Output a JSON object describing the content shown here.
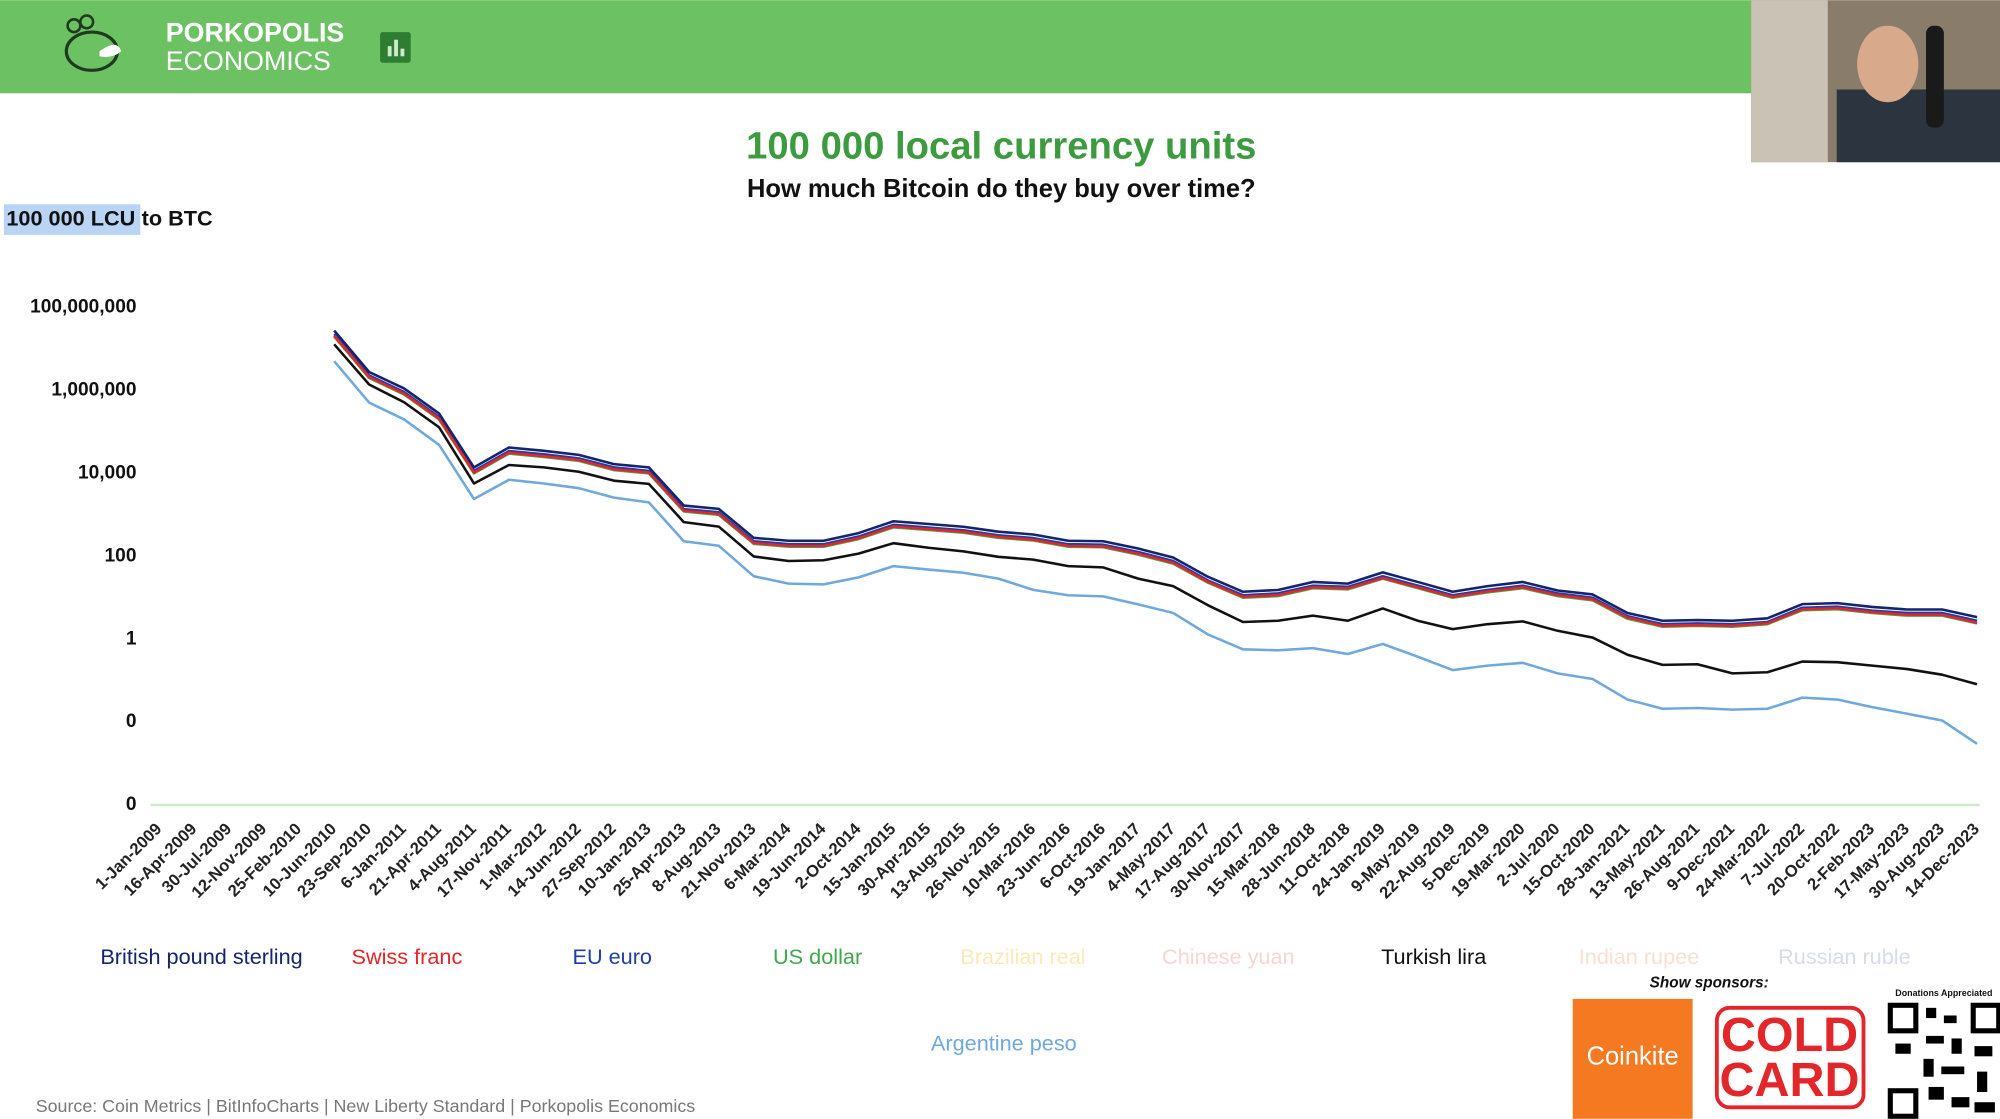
{
  "header": {
    "brand_top": "PORKOPOLIS",
    "brand_bottom": "ECONOMICS"
  },
  "sponsors": {
    "heading": "Show sponsors:",
    "coinkite": "Coinkite",
    "coldcard_top": "COLD",
    "coldcard_bottom": "CARD",
    "qr_caption": "Donations Appreciated"
  },
  "chart_data": {
    "type": "line",
    "title": "100 000 local currency units",
    "subtitle": "How much Bitcoin do they buy over time?",
    "y_label_highlight": "100 000 LCU",
    "y_label_rest": "to BTC",
    "source": "Source: Coin Metrics | BitInfoCharts | New Liberty Standard | Porkopolis Economics",
    "log_scale": true,
    "grid": false,
    "ylim": [
      0.0001,
      100000000
    ],
    "yticks": [
      {
        "value": 100000000,
        "label": "100,000,000"
      },
      {
        "value": 1000000,
        "label": "1,000,000"
      },
      {
        "value": 10000,
        "label": "10,000"
      },
      100,
      1,
      {
        "value": 0.01,
        "label": "0"
      },
      {
        "value": 0.0001,
        "label": "0"
      }
    ],
    "categories": [
      "1-Jan-2009",
      "16-Apr-2009",
      "30-Jul-2009",
      "12-Nov-2009",
      "25-Feb-2010",
      "10-Jun-2010",
      "23-Sep-2010",
      "6-Jan-2011",
      "21-Apr-2011",
      "4-Aug-2011",
      "17-Nov-2011",
      "1-Mar-2012",
      "14-Jun-2012",
      "27-Sep-2012",
      "10-Jan-2013",
      "25-Apr-2013",
      "8-Aug-2013",
      "21-Nov-2013",
      "6-Mar-2014",
      "19-Jun-2014",
      "2-Oct-2014",
      "15-Jan-2015",
      "30-Apr-2015",
      "13-Aug-2015",
      "26-Nov-2015",
      "10-Mar-2016",
      "23-Jun-2016",
      "6-Oct-2016",
      "19-Jan-2017",
      "4-May-2017",
      "17-Aug-2017",
      "30-Nov-2017",
      "15-Mar-2018",
      "28-Jun-2018",
      "11-Oct-2018",
      "24-Jan-2019",
      "9-May-2019",
      "22-Aug-2019",
      "5-Dec-2019",
      "19-Mar-2020",
      "2-Jul-2020",
      "15-Oct-2020",
      "28-Jan-2021",
      "13-May-2021",
      "26-Aug-2021",
      "9-Dec-2021",
      "24-Mar-2022",
      "7-Jul-2022",
      "20-Oct-2022",
      "2-Feb-2023",
      "17-May-2023",
      "30-Aug-2023",
      "14-Dec-2023"
    ],
    "series": [
      {
        "name": "British pound sterling",
        "color": "#14246e",
        "visible": true,
        "values": [
          null,
          null,
          null,
          null,
          null,
          28000000,
          2800000,
          1120000,
          280000,
          14000,
          42000,
          35000,
          28000,
          16800,
          14000,
          1680,
          1400,
          280,
          238,
          238,
          364,
          700,
          602,
          518,
          392,
          336,
          238,
          231,
          154,
          94,
          32,
          14,
          15.4,
          24,
          22,
          41,
          24,
          14,
          19,
          24,
          15,
          12,
          4.3,
          2.8,
          2.9,
          2.8,
          3.2,
          7,
          7.4,
          6,
          5.2,
          5.2,
          3.4
        ]
      },
      {
        "name": "Swiss franc",
        "color": "#e3262a",
        "visible": true,
        "values": [
          null,
          null,
          null,
          null,
          null,
          21000000,
          2100000,
          840000,
          210000,
          10500,
          31500,
          26000,
          21000,
          12600,
          10500,
          1260,
          1050,
          210,
          179,
          179,
          273,
          525,
          452,
          389,
          294,
          252,
          179,
          173,
          116,
          70,
          24,
          10.5,
          11.6,
          17.9,
          16.8,
          30,
          17.9,
          10.5,
          14.2,
          17.9,
          11.6,
          9.1,
          3.3,
          2.1,
          2.2,
          2.1,
          2.4,
          5.25,
          5.6,
          4.5,
          3.9,
          3.9,
          2.5
        ]
      },
      {
        "name": "EU euro",
        "color": "#1f3fa8",
        "visible": true,
        "values": [
          null,
          null,
          null,
          null,
          null,
          23000000,
          2300000,
          920000,
          230000,
          11500,
          34500,
          29000,
          23000,
          14000,
          11500,
          1380,
          1150,
          230,
          196,
          196,
          300,
          575,
          495,
          425,
          322,
          276,
          196,
          190,
          127,
          77,
          26,
          11.5,
          12.7,
          19.6,
          18.4,
          33,
          19.6,
          11.5,
          15.5,
          19.6,
          12.7,
          10,
          3.6,
          2.3,
          2.4,
          2.3,
          2.6,
          5.75,
          6.1,
          4.9,
          4.3,
          4.3,
          2.8
        ]
      },
      {
        "name": "US dollar",
        "color": "#3fa84a",
        "visible": true,
        "values": [
          null,
          null,
          null,
          null,
          null,
          20000000,
          2000000,
          800000,
          200000,
          10000,
          30000,
          25000,
          20000,
          12000,
          10000,
          1200,
          1000,
          200,
          170,
          170,
          260,
          500,
          430,
          370,
          280,
          240,
          170,
          165,
          110,
          67,
          23,
          10,
          11,
          17,
          16,
          29,
          17,
          10,
          13.5,
          17,
          11,
          8.7,
          3.1,
          2,
          2.1,
          2,
          2.3,
          5,
          5.3,
          4.3,
          3.7,
          3.7,
          2.4
        ]
      },
      {
        "name": "Brazilian real",
        "color": "#f7d77a",
        "visible": false,
        "values": [
          null,
          null,
          null,
          null,
          null,
          null,
          null,
          null,
          null,
          null,
          null,
          null,
          null,
          null,
          null,
          null,
          null,
          null,
          null,
          null,
          null,
          null,
          null,
          null,
          null,
          null,
          null,
          null,
          null,
          null,
          null,
          null,
          null,
          null,
          null,
          null,
          null,
          null,
          null,
          null,
          null,
          null,
          null,
          null,
          null,
          null,
          null,
          null,
          null,
          null,
          null,
          null,
          null
        ]
      },
      {
        "name": "Chinese yuan",
        "color": "#f1b3b3",
        "visible": false,
        "values": [
          null,
          null,
          null,
          null,
          null,
          null,
          null,
          null,
          null,
          null,
          null,
          null,
          null,
          null,
          null,
          null,
          null,
          null,
          null,
          null,
          null,
          null,
          null,
          null,
          null,
          null,
          null,
          null,
          null,
          null,
          null,
          null,
          null,
          null,
          null,
          null,
          null,
          null,
          null,
          null,
          null,
          null,
          null,
          null,
          null,
          null,
          null,
          null,
          null,
          null,
          null,
          null,
          null
        ]
      },
      {
        "name": "Turkish lira",
        "color": "#111111",
        "visible": true,
        "values": [
          null,
          null,
          null,
          null,
          null,
          13000000,
          1400000,
          520000,
          130000,
          5700,
          16000,
          14000,
          11000,
          6700,
          5600,
          670,
          520,
          99,
          77,
          80,
          116,
          208,
          161,
          132,
          97,
          83,
          58,
          54,
          29,
          19,
          6.6,
          2.6,
          2.8,
          3.7,
          2.8,
          5.5,
          2.8,
          1.75,
          2.3,
          2.7,
          1.6,
          1.1,
          0.42,
          0.24,
          0.25,
          0.15,
          0.16,
          0.29,
          0.28,
          0.23,
          0.19,
          0.14,
          0.082
        ]
      },
      {
        "name": "Indian rupee",
        "color": "#f4c4ab",
        "visible": false,
        "values": [
          null,
          null,
          null,
          null,
          null,
          null,
          null,
          null,
          null,
          null,
          null,
          null,
          null,
          null,
          null,
          null,
          null,
          null,
          null,
          null,
          null,
          null,
          null,
          null,
          null,
          null,
          null,
          null,
          null,
          null,
          null,
          null,
          null,
          null,
          null,
          null,
          null,
          null,
          null,
          null,
          null,
          null,
          null,
          null,
          null,
          null,
          null,
          null,
          null,
          null,
          null,
          null,
          null
        ]
      },
      {
        "name": "Russian ruble",
        "color": "#b7bfd8",
        "visible": false,
        "values": [
          null,
          null,
          null,
          null,
          null,
          null,
          null,
          null,
          null,
          null,
          null,
          null,
          null,
          null,
          null,
          null,
          null,
          null,
          null,
          null,
          null,
          null,
          null,
          null,
          null,
          null,
          null,
          null,
          null,
          null,
          null,
          null,
          null,
          null,
          null,
          null,
          null,
          null,
          null,
          null,
          null,
          null,
          null,
          null,
          null,
          null,
          null,
          null,
          null,
          null,
          null,
          null,
          null
        ]
      },
      {
        "name": "Argentine peso",
        "color": "#6fa8dc",
        "visible": true,
        "values": [
          null,
          null,
          null,
          null,
          null,
          5100000,
          510000,
          200000,
          49000,
          2400,
          7000,
          5700,
          4400,
          2600,
          2000,
          230,
          180,
          33,
          22,
          21,
          31,
          58,
          48,
          40,
          29,
          15.5,
          11.5,
          10.8,
          6.9,
          4.3,
          1.3,
          0.57,
          0.54,
          0.61,
          0.44,
          0.77,
          0.38,
          0.18,
          0.23,
          0.27,
          0.15,
          0.11,
          0.035,
          0.021,
          0.022,
          0.02,
          0.021,
          0.039,
          0.035,
          0.023,
          0.016,
          0.011,
          0.003
        ]
      }
    ]
  }
}
